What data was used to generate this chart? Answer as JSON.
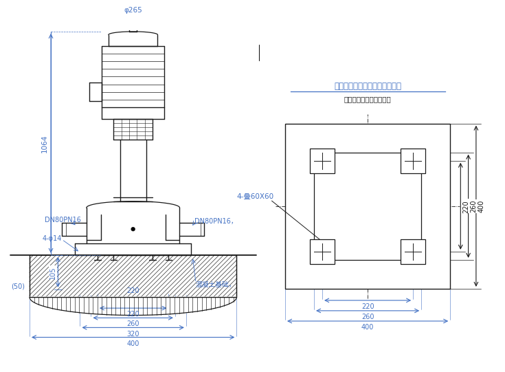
{
  "bg_color": "#ffffff",
  "line_color": "#1a1a1a",
  "dim_color": "#4472c4",
  "title1": "泵座孔位及混凝土基座地脚孔位",
  "title2": "双点划线表示泵底座位置",
  "label_dn80pn16_left": "DN80PN16",
  "label_dn80pn16_right": "DN80PN16，",
  "label_4phi14": "4-φ14",
  "label_105": "105",
  "label_50": "(50)",
  "label_220_bottom": "220",
  "label_260_bottom": "260",
  "label_320": "320",
  "label_400_bottom": "400",
  "label_phi265": "φ265",
  "label_1064": "1064",
  "label_concrete": "混凝土基础，",
  "label_4slot": "4-叠60X60",
  "label_220_right": "220",
  "label_260_right": "260",
  "label_400_right": "400"
}
